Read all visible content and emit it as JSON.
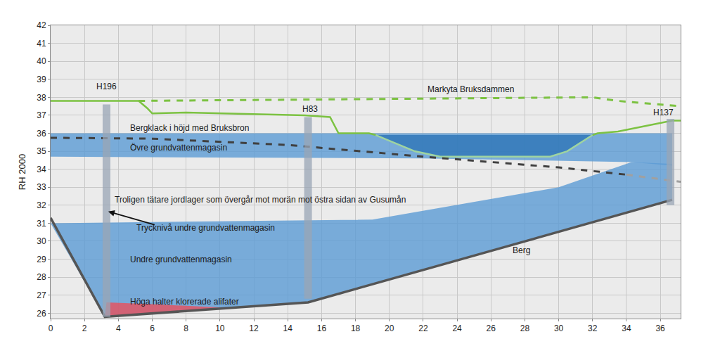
{
  "chart_data": {
    "type": "cross_section",
    "ylabel": "RH 2000",
    "xlim": [
      0,
      37.2
    ],
    "ylim": [
      25.7,
      42
    ],
    "xticks": [
      0,
      2,
      4,
      6,
      8,
      10,
      12,
      14,
      16,
      18,
      20,
      22,
      24,
      26,
      28,
      30,
      32,
      34,
      36
    ],
    "yticks": [
      26,
      27,
      28,
      29,
      30,
      31,
      32,
      33,
      34,
      35,
      36,
      37,
      38,
      39,
      40,
      41,
      42
    ],
    "grid": true,
    "series": [
      {
        "type": "area",
        "color": "#5b9bd5",
        "x": [
          0,
          19,
          30,
          34.3,
          36.7,
          36.7,
          15.2,
          3.2,
          0
        ],
        "values": [
          31.0,
          31.2,
          33.0,
          34.4,
          34.3,
          32.3,
          26.6,
          25.8,
          31.0
        ]
      },
      {
        "type": "area",
        "color": "#5b9bd5",
        "x": [
          0,
          36.7,
          36.7,
          34.3,
          22,
          0,
          0
        ],
        "values": [
          36.0,
          36.0,
          34.2,
          34.4,
          34.6,
          34.7,
          36.0
        ]
      },
      {
        "type": "area",
        "color": "#2e75b6",
        "x": [
          19.2,
          21.5,
          23,
          29.5,
          30.5,
          32,
          19.2
        ],
        "values": [
          35.9,
          35.0,
          34.7,
          34.7,
          35.0,
          35.9,
          35.9
        ]
      },
      {
        "type": "area",
        "color": "#e8505b",
        "x": [
          3.2,
          3.3,
          6,
          10.5,
          3.5,
          3.2
        ],
        "values": [
          25.8,
          26.6,
          26.5,
          26.3,
          25.85,
          25.8
        ]
      },
      {
        "type": "line",
        "color": "#555555",
        "line_style": "thick",
        "x": [
          0,
          3.2,
          15.2,
          36.7
        ],
        "values": [
          31.3,
          25.8,
          26.6,
          32.3
        ]
      },
      {
        "type": "line",
        "color": "#7cc242",
        "line_style": "solid",
        "x": [
          0,
          5.2,
          5.7,
          6,
          8,
          15,
          16.5,
          17,
          18.8,
          19.2
        ],
        "values": [
          37.8,
          37.8,
          37.4,
          37.1,
          37.15,
          37.0,
          36.9,
          36.0,
          36.0,
          35.9
        ]
      },
      {
        "type": "line",
        "color": "#9fd4a0",
        "line_style": "solid",
        "x": [
          19.2,
          21.5,
          23,
          29.5,
          30.5,
          32
        ],
        "values": [
          35.9,
          35.0,
          34.7,
          34.7,
          35.0,
          35.9
        ]
      },
      {
        "type": "line",
        "color": "#7cc242",
        "line_style": "solid",
        "x": [
          32,
          32.3,
          33.5,
          36.7,
          37.2
        ],
        "values": [
          35.9,
          36.0,
          36.1,
          36.7,
          36.7
        ]
      },
      {
        "type": "line",
        "color": "#7cc242",
        "line_style": "dash",
        "x": [
          5.2,
          32,
          33.5,
          37.2
        ],
        "values": [
          37.8,
          38.0,
          37.8,
          37.5
        ]
      },
      {
        "type": "line",
        "color": "#404040",
        "line_style": "dash",
        "x": [
          0,
          6,
          14,
          22,
          30,
          34
        ],
        "values": [
          35.75,
          35.7,
          35.35,
          34.7,
          34.1,
          33.7
        ]
      },
      {
        "type": "line",
        "color": "#a0a0a0",
        "line_style": "dash",
        "x": [
          34,
          37.2
        ],
        "values": [
          33.7,
          33.3
        ]
      },
      {
        "type": "borehole",
        "color": "#9aa6b6",
        "x": [
          3.3,
          3.3
        ],
        "values": [
          25.8,
          37.6
        ]
      },
      {
        "type": "borehole",
        "color": "#9aa6b6",
        "x": [
          15.2,
          15.2
        ],
        "values": [
          26.8,
          36.9
        ]
      },
      {
        "type": "borehole",
        "color": "#9aa6b6",
        "x": [
          36.6,
          36.6
        ],
        "values": [
          32.0,
          36.8
        ]
      }
    ],
    "annotations": [
      {
        "text": "H196",
        "x": 3.3,
        "y": 38.6
      },
      {
        "text": "H83",
        "x": 15.3,
        "y": 37.35
      },
      {
        "text": "H137",
        "x": 36.2,
        "y": 37.15
      },
      {
        "text": "Markyta Bruksdammen",
        "x": 24.8,
        "y": 38.45
      },
      {
        "text": "Bergklack i höjd med Bruksbron",
        "x": 4.6,
        "y": 36.3,
        "align": "left"
      },
      {
        "text": "Övre grundvattenmagasin",
        "x": 4.6,
        "y": 35.2,
        "align": "left"
      },
      {
        "text": "Troligen tätare jordlager som övergår mot morän mot östra sidan av Gusumån",
        "x": 3.7,
        "y": 32.3,
        "align": "left"
      },
      {
        "text": "Trycknivå undre grundvattenmagasin",
        "x": 5.0,
        "y": 30.75,
        "align": "left",
        "arrow": {
          "from": [
            6.2,
            30.9
          ],
          "to": [
            3.4,
            31.65
          ]
        }
      },
      {
        "text": "Undre grundvattenmagasin",
        "x": 4.6,
        "y": 29.0,
        "align": "left"
      },
      {
        "text": "Höga halter klorerade alifater",
        "x": 4.6,
        "y": 26.65,
        "align": "left"
      },
      {
        "text": "Berg",
        "x": 27.2,
        "y": 29.5,
        "align": "left"
      }
    ]
  }
}
